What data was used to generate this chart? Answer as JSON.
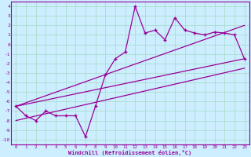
{
  "x": [
    0,
    1,
    2,
    3,
    4,
    5,
    6,
    7,
    8,
    9,
    10,
    11,
    12,
    13,
    14,
    15,
    16,
    17,
    18,
    19,
    20,
    21,
    22,
    23
  ],
  "y": [
    -6.5,
    -7.5,
    -8.0,
    -7.0,
    -7.5,
    -7.5,
    -7.5,
    -9.7,
    -6.5,
    -3.2,
    -1.5,
    -0.8,
    4.0,
    1.2,
    1.5,
    0.5,
    2.8,
    1.5,
    1.2,
    1.0,
    1.3,
    1.2,
    1.0,
    -1.5
  ],
  "line1_x": [
    0,
    23
  ],
  "line1_y": [
    -6.5,
    -1.5
  ],
  "line2_x": [
    0,
    23
  ],
  "line2_y": [
    -6.5,
    2.0
  ],
  "line3_x": [
    0,
    23
  ],
  "line3_y": [
    -8.0,
    -2.5
  ],
  "color": "#990099",
  "bg_color": "#cceeff",
  "grid_color": "#aaddcc",
  "xlabel": "Windchill (Refroidissement éolien,°C)",
  "xlim": [
    -0.5,
    23.5
  ],
  "ylim": [
    -10.5,
    4.5
  ],
  "xticks": [
    0,
    1,
    2,
    3,
    4,
    5,
    6,
    7,
    8,
    9,
    10,
    11,
    12,
    13,
    14,
    15,
    16,
    17,
    18,
    19,
    20,
    21,
    22,
    23
  ],
  "yticks": [
    4,
    3,
    2,
    1,
    0,
    -1,
    -2,
    -3,
    -4,
    -5,
    -6,
    -7,
    -8,
    -9,
    -10
  ]
}
